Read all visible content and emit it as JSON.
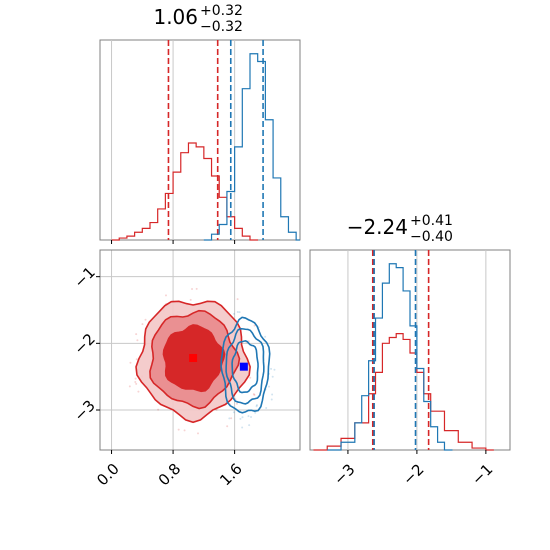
{
  "chart_data": [
    {
      "type": "histogram",
      "panel": "top-left",
      "title": {
        "value": "1.06",
        "plus": "+0.32",
        "minus": "−0.32"
      },
      "xlim": [
        -0.15,
        2.45
      ],
      "grid": true,
      "show_x_tick_labels": false,
      "series": [
        {
          "color": "#d62728",
          "bins": [
            [
              0.0,
              0.0
            ],
            [
              0.1,
              0.01
            ],
            [
              0.2,
              0.02
            ],
            [
              0.3,
              0.04
            ],
            [
              0.4,
              0.06
            ],
            [
              0.5,
              0.09
            ],
            [
              0.6,
              0.16
            ],
            [
              0.7,
              0.24
            ],
            [
              0.8,
              0.35
            ],
            [
              0.9,
              0.45
            ],
            [
              1.0,
              0.5
            ],
            [
              1.1,
              0.48
            ],
            [
              1.2,
              0.42
            ],
            [
              1.3,
              0.33
            ],
            [
              1.4,
              0.22
            ],
            [
              1.5,
              0.12
            ],
            [
              1.6,
              0.06
            ],
            [
              1.7,
              0.02
            ],
            [
              1.8,
              0.0
            ]
          ],
          "quantiles": [
            0.74,
            1.06,
            1.38
          ]
        },
        {
          "color": "#1f77b4",
          "bins": [
            [
              1.2,
              0.0
            ],
            [
              1.3,
              0.03
            ],
            [
              1.4,
              0.08
            ],
            [
              1.5,
              0.25
            ],
            [
              1.6,
              0.48
            ],
            [
              1.7,
              0.78
            ],
            [
              1.8,
              0.96
            ],
            [
              1.9,
              0.92
            ],
            [
              2.0,
              0.62
            ],
            [
              2.1,
              0.32
            ],
            [
              2.2,
              0.12
            ],
            [
              2.3,
              0.04
            ],
            [
              2.4,
              0.0
            ]
          ],
          "quantiles": [
            1.55,
            1.74,
            1.97
          ]
        }
      ]
    },
    {
      "type": "contour",
      "panel": "bottom-left",
      "x_ticks": [
        "0.0",
        "0.8",
        "1.6"
      ],
      "x_tick_values": [
        0.0,
        0.8,
        1.6
      ],
      "y_ticks": [
        "−1",
        "−2",
        "−3"
      ],
      "y_tick_values": [
        -1,
        -2,
        -3
      ],
      "xlim": [
        -0.15,
        2.45
      ],
      "ylim": [
        -3.6,
        -0.6
      ],
      "grid": true,
      "series": [
        {
          "color": "#d62728",
          "center": [
            1.06,
            -2.23
          ],
          "sigma": [
            0.32,
            0.4
          ],
          "filled": true,
          "marker": [
            1.06,
            -2.22
          ],
          "marker_shape": "square"
        },
        {
          "color": "#1f77b4",
          "center": [
            1.74,
            -2.35
          ],
          "sigma": [
            0.14,
            0.32
          ],
          "filled": false,
          "marker": [
            1.72,
            -2.35
          ],
          "marker_shape": "square"
        }
      ]
    },
    {
      "type": "histogram",
      "panel": "bottom-right",
      "title": {
        "value": "−2.24",
        "plus": "+0.41",
        "minus": "−0.40"
      },
      "x_ticks": [
        "−3",
        "−2",
        "−1"
      ],
      "x_tick_values": [
        -3,
        -2,
        -1
      ],
      "xlim": [
        -3.55,
        -0.65
      ],
      "grid": true,
      "series": [
        {
          "color": "#d62728",
          "bins": [
            [
              -3.5,
              0.0
            ],
            [
              -3.3,
              0.02
            ],
            [
              -3.1,
              0.06
            ],
            [
              -2.9,
              0.14
            ],
            [
              -2.7,
              0.29
            ],
            [
              -2.6,
              0.4
            ],
            [
              -2.5,
              0.55
            ],
            [
              -2.4,
              0.58
            ],
            [
              -2.3,
              0.6
            ],
            [
              -2.2,
              0.57
            ],
            [
              -2.1,
              0.5
            ],
            [
              -2.0,
              0.4
            ],
            [
              -1.9,
              0.29
            ],
            [
              -1.8,
              0.2
            ],
            [
              -1.6,
              0.1
            ],
            [
              -1.4,
              0.04
            ],
            [
              -1.2,
              0.01
            ],
            [
              -1.0,
              0.0
            ]
          ],
          "quantiles": [
            -2.64,
            -2.24,
            -1.83
          ]
        },
        {
          "color": "#1f77b4",
          "bins": [
            [
              -3.3,
              0.0
            ],
            [
              -3.1,
              0.04
            ],
            [
              -2.9,
              0.14
            ],
            [
              -2.8,
              0.28
            ],
            [
              -2.7,
              0.46
            ],
            [
              -2.6,
              0.68
            ],
            [
              -2.5,
              0.86
            ],
            [
              -2.4,
              0.96
            ],
            [
              -2.3,
              0.94
            ],
            [
              -2.2,
              0.82
            ],
            [
              -2.1,
              0.64
            ],
            [
              -2.0,
              0.42
            ],
            [
              -1.9,
              0.25
            ],
            [
              -1.8,
              0.12
            ],
            [
              -1.7,
              0.04
            ],
            [
              -1.6,
              0.0
            ]
          ],
          "quantiles": [
            -2.62,
            -2.35,
            -2.02
          ]
        }
      ]
    }
  ]
}
